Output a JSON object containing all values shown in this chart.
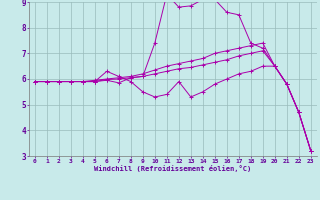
{
  "background_color": "#c8eaea",
  "line_color": "#aa00aa",
  "grid_color": "#99bbbb",
  "xlabel": "Windchill (Refroidissement éolien,°C)",
  "xlabel_color": "#660099",
  "tick_color": "#660099",
  "xlim": [
    -0.5,
    23.5
  ],
  "ylim": [
    3,
    9
  ],
  "yticks": [
    3,
    4,
    5,
    6,
    7,
    8,
    9
  ],
  "xticks": [
    0,
    1,
    2,
    3,
    4,
    5,
    6,
    7,
    8,
    9,
    10,
    11,
    12,
    13,
    14,
    15,
    16,
    17,
    18,
    19,
    20,
    21,
    22,
    23
  ],
  "series": [
    [
      5.9,
      5.9,
      5.9,
      5.9,
      5.9,
      5.9,
      6.3,
      6.1,
      5.9,
      5.5,
      5.3,
      5.4,
      5.9,
      5.3,
      5.5,
      5.8,
      6.0,
      6.2,
      6.3,
      6.5,
      6.5,
      5.8,
      4.7,
      3.2
    ],
    [
      5.9,
      5.9,
      5.9,
      5.9,
      5.9,
      5.9,
      5.95,
      5.85,
      6.05,
      6.1,
      7.4,
      9.3,
      8.8,
      8.85,
      9.1,
      9.1,
      8.6,
      8.5,
      7.4,
      7.2,
      6.5,
      5.8,
      4.7,
      3.2
    ],
    [
      5.9,
      5.9,
      5.9,
      5.9,
      5.9,
      5.95,
      6.0,
      6.05,
      6.1,
      6.2,
      6.35,
      6.5,
      6.6,
      6.7,
      6.8,
      7.0,
      7.1,
      7.2,
      7.3,
      7.4,
      6.5,
      5.8,
      4.7,
      3.2
    ],
    [
      5.9,
      5.9,
      5.9,
      5.9,
      5.9,
      5.9,
      5.98,
      6.0,
      6.05,
      6.1,
      6.2,
      6.3,
      6.4,
      6.45,
      6.55,
      6.65,
      6.75,
      6.9,
      7.0,
      7.1,
      6.5,
      5.8,
      4.7,
      3.2
    ]
  ]
}
